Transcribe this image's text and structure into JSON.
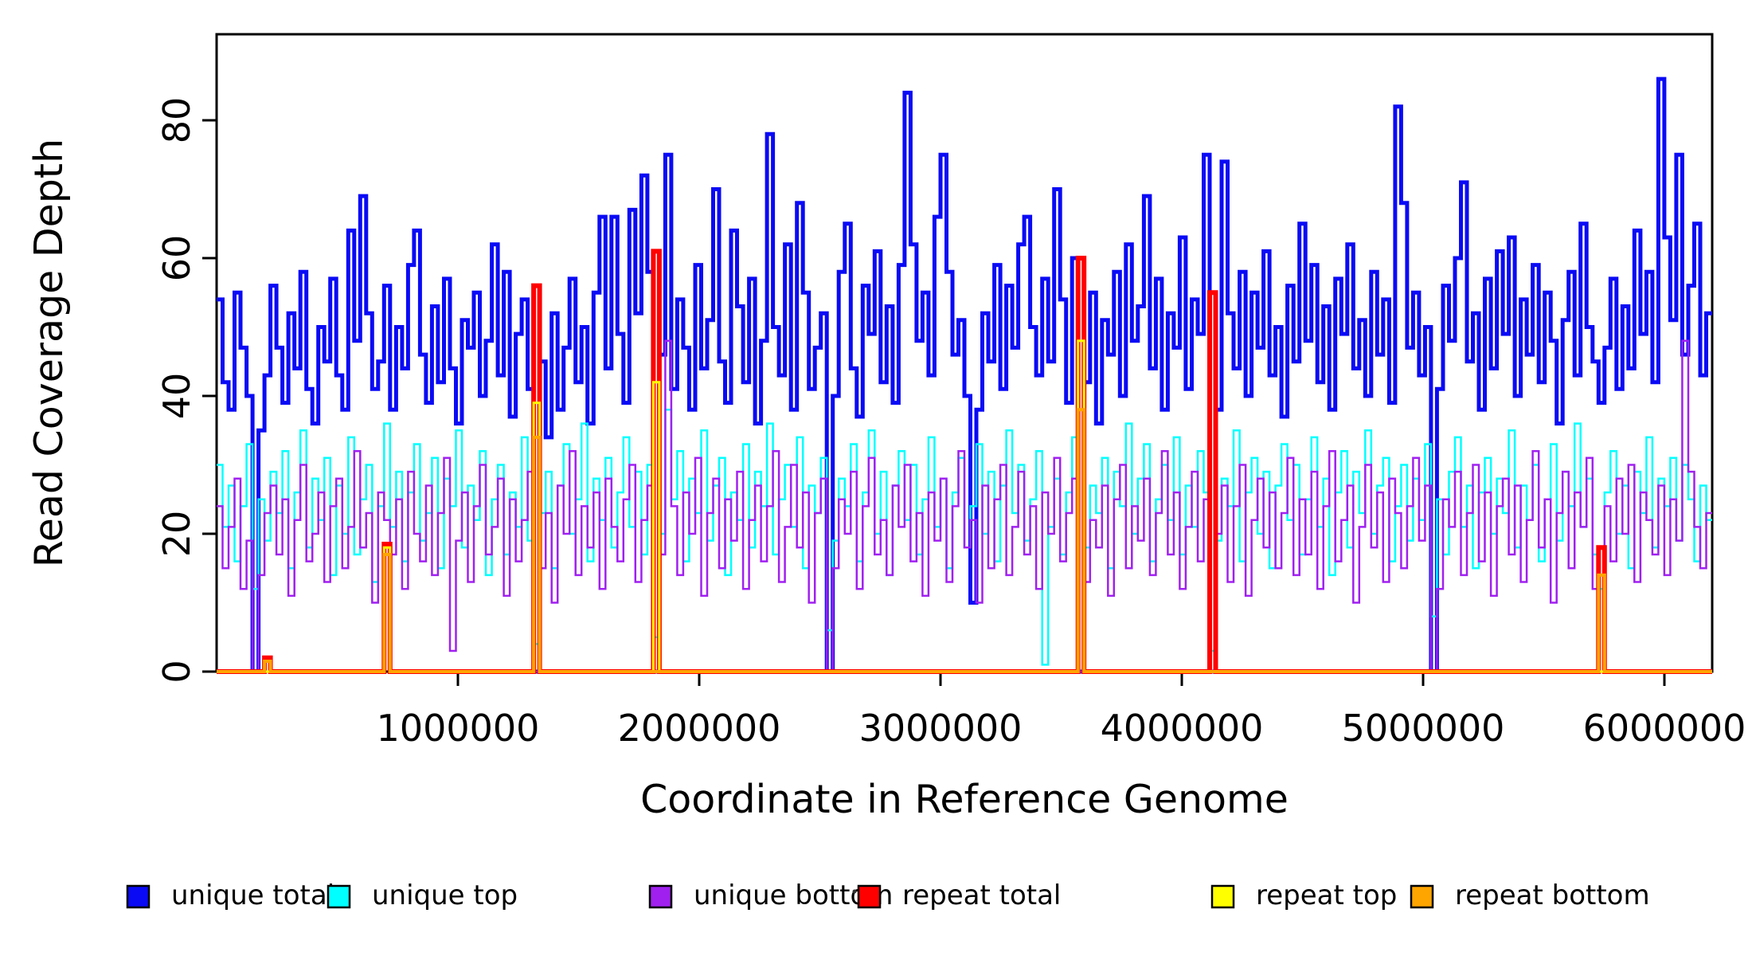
{
  "page": {
    "background": "#ffffff"
  },
  "chart_data": {
    "type": "line",
    "subtype": "step",
    "title": "",
    "xlabel": "Coordinate in Reference Genome",
    "ylabel": "Read Coverage Depth",
    "x_range": [
      0,
      6200000
    ],
    "y_range": [
      0,
      92
    ],
    "x_ticks": [
      1000000,
      2000000,
      3000000,
      4000000,
      5000000,
      6000000
    ],
    "x_tick_labels": [
      "1000000",
      "2000000",
      "3000000",
      "4000000",
      "5000000",
      "6000000"
    ],
    "y_ticks": [
      0,
      20,
      40,
      60,
      80
    ],
    "y_tick_labels": [
      "0",
      "20",
      "40",
      "60",
      "80"
    ],
    "grid": false,
    "legend_position": "bottom",
    "bin_size": 24800,
    "n_bins": 250,
    "series": [
      {
        "name": "unique total",
        "color": "#0A0AF5",
        "width": 5,
        "values": [
          54,
          42,
          38,
          55,
          47,
          40,
          0,
          35,
          43,
          56,
          47,
          39,
          52,
          44,
          58,
          41,
          36,
          50,
          45,
          57,
          43,
          38,
          64,
          48,
          69,
          52,
          41,
          45,
          56,
          38,
          50,
          44,
          59,
          64,
          46,
          39,
          53,
          42,
          57,
          44,
          36,
          51,
          47,
          55,
          40,
          48,
          62,
          43,
          58,
          37,
          49,
          54,
          41,
          0,
          45,
          34,
          52,
          38,
          47,
          57,
          42,
          50,
          36,
          55,
          66,
          44,
          66,
          49,
          39,
          67,
          52,
          72,
          58,
          0,
          46,
          75,
          41,
          54,
          47,
          38,
          59,
          44,
          51,
          70,
          45,
          39,
          64,
          53,
          42,
          57,
          36,
          48,
          78,
          50,
          43,
          62,
          38,
          68,
          55,
          41,
          47,
          52,
          0,
          40,
          58,
          65,
          44,
          37,
          56,
          49,
          61,
          42,
          53,
          39,
          59,
          84,
          62,
          48,
          55,
          43,
          66,
          75,
          58,
          46,
          51,
          40,
          10,
          38,
          52,
          45,
          59,
          41,
          56,
          47,
          62,
          66,
          50,
          43,
          57,
          45,
          70,
          54,
          39,
          60,
          0,
          42,
          55,
          36,
          51,
          46,
          58,
          40,
          62,
          48,
          53,
          69,
          44,
          57,
          38,
          52,
          47,
          63,
          41,
          54,
          49,
          75,
          0,
          38,
          74,
          52,
          44,
          58,
          40,
          55,
          47,
          61,
          43,
          50,
          37,
          56,
          45,
          65,
          48,
          59,
          42,
          53,
          38,
          57,
          49,
          62,
          44,
          51,
          40,
          58,
          46,
          54,
          39,
          82,
          68,
          47,
          55,
          43,
          50,
          0,
          41,
          56,
          48,
          60,
          71,
          45,
          52,
          38,
          57,
          44,
          61,
          49,
          63,
          40,
          54,
          46,
          59,
          42,
          55,
          48,
          36,
          51,
          58,
          43,
          65,
          50,
          45,
          39,
          47,
          57,
          41,
          53,
          44,
          64,
          49,
          58,
          42,
          86,
          63,
          51,
          75,
          46,
          56,
          65,
          43,
          52
        ]
      },
      {
        "name": "unique top",
        "color": "#00FFFF",
        "width": 2.5,
        "values": [
          30,
          21,
          27,
          16,
          24,
          33,
          12,
          25,
          19,
          29,
          23,
          32,
          15,
          26,
          35,
          18,
          28,
          22,
          31,
          14,
          27,
          20,
          34,
          17,
          25,
          30,
          13,
          24,
          36,
          21,
          29,
          16,
          26,
          33,
          19,
          23,
          31,
          15,
          28,
          24,
          35,
          18,
          27,
          22,
          32,
          14,
          25,
          30,
          17,
          26,
          21,
          34,
          19,
          4,
          23,
          29,
          15,
          27,
          33,
          20,
          25,
          36,
          16,
          28,
          22,
          31,
          18,
          26,
          34,
          21,
          29,
          17,
          30,
          5,
          20,
          38,
          25,
          32,
          16,
          28,
          23,
          35,
          19,
          27,
          31,
          14,
          26,
          22,
          33,
          18,
          29,
          24,
          36,
          17,
          25,
          30,
          21,
          34,
          15,
          27,
          23,
          31,
          6,
          19,
          28,
          24,
          33,
          16,
          26,
          35,
          20,
          29,
          14,
          27,
          32,
          22,
          30,
          17,
          25,
          34,
          21,
          28,
          15,
          26,
          31,
          18,
          24,
          33,
          20,
          29,
          16,
          27,
          35,
          23,
          30,
          19,
          25,
          32,
          1,
          21,
          28,
          17,
          26,
          34,
          0,
          18,
          27,
          23,
          31,
          15,
          29,
          24,
          36,
          20,
          28,
          33,
          16,
          25,
          30,
          22,
          34,
          17,
          27,
          21,
          32,
          26,
          3,
          19,
          28,
          24,
          35,
          16,
          26,
          31,
          20,
          29,
          15,
          27,
          33,
          22,
          30,
          17,
          25,
          34,
          21,
          28,
          14,
          26,
          32,
          18,
          29,
          23,
          35,
          20,
          27,
          31,
          16,
          24,
          30,
          19,
          28,
          22,
          33,
          8,
          25,
          17,
          29,
          34,
          21,
          27,
          15,
          26,
          31,
          20,
          28,
          23,
          35,
          18,
          27,
          22,
          30,
          16,
          25,
          33,
          19,
          29,
          24,
          36,
          21,
          28,
          17,
          12,
          26,
          32,
          20,
          27,
          15,
          29,
          23,
          34,
          18,
          28,
          24,
          31,
          19,
          30,
          25,
          16,
          27,
          22
        ]
      },
      {
        "name": "unique bottom",
        "color": "#A020F0",
        "width": 2.5,
        "values": [
          24,
          15,
          21,
          28,
          12,
          19,
          0,
          14,
          23,
          27,
          17,
          25,
          11,
          22,
          30,
          16,
          20,
          26,
          13,
          24,
          28,
          15,
          21,
          32,
          18,
          23,
          10,
          26,
          22,
          17,
          25,
          12,
          29,
          20,
          16,
          27,
          14,
          23,
          31,
          3,
          19,
          26,
          13,
          24,
          30,
          17,
          21,
          28,
          11,
          25,
          16,
          22,
          29,
          0,
          15,
          23,
          10,
          27,
          20,
          32,
          14,
          24,
          18,
          26,
          12,
          28,
          21,
          16,
          25,
          30,
          13,
          22,
          27,
          0,
          17,
          48,
          24,
          14,
          26,
          20,
          31,
          11,
          23,
          28,
          15,
          25,
          19,
          29,
          12,
          22,
          27,
          16,
          24,
          32,
          13,
          21,
          30,
          18,
          26,
          10,
          23,
          28,
          0,
          15,
          25,
          20,
          29,
          12,
          24,
          31,
          17,
          22,
          14,
          27,
          21,
          30,
          16,
          23,
          11,
          26,
          19,
          28,
          13,
          24,
          32,
          18,
          22,
          10,
          27,
          15,
          25,
          30,
          14,
          21,
          29,
          17,
          24,
          12,
          26,
          20,
          31,
          16,
          23,
          28,
          0,
          13,
          22,
          18,
          27,
          11,
          25,
          30,
          15,
          24,
          19,
          28,
          14,
          23,
          32,
          17,
          26,
          12,
          21,
          29,
          16,
          25,
          0,
          20,
          27,
          13,
          24,
          30,
          11,
          22,
          28,
          18,
          26,
          15,
          23,
          31,
          14,
          25,
          17,
          29,
          12,
          24,
          32,
          16,
          22,
          27,
          10,
          21,
          30,
          18,
          26,
          13,
          28,
          23,
          15,
          24,
          31,
          19,
          27,
          0,
          12,
          25,
          21,
          29,
          14,
          23,
          30,
          16,
          26,
          11,
          24,
          28,
          17,
          27,
          13,
          22,
          32,
          18,
          25,
          10,
          23,
          29,
          15,
          26,
          21,
          31,
          12,
          0,
          24,
          16,
          28,
          20,
          30,
          13,
          26,
          22,
          17,
          27,
          14,
          25,
          19,
          48,
          29,
          21,
          15,
          23
        ]
      },
      {
        "name": "repeat total",
        "color": "#FF0000",
        "width": 6,
        "baseline": 0,
        "spikes": [
          [
            8,
            2
          ],
          [
            28,
            18.5
          ],
          [
            53,
            56
          ],
          [
            73,
            61
          ],
          [
            144,
            60
          ],
          [
            166,
            55
          ],
          [
            231,
            18
          ]
        ]
      },
      {
        "name": "repeat top",
        "color": "#FFFF00",
        "width": 3,
        "baseline": 0,
        "spikes": [
          [
            28,
            18
          ],
          [
            53,
            39
          ],
          [
            73,
            42
          ],
          [
            144,
            48
          ]
        ]
      },
      {
        "name": "repeat bottom",
        "color": "#FFA500",
        "width": 4,
        "baseline": 0,
        "spikes": [
          [
            8,
            1.5
          ],
          [
            28,
            17
          ],
          [
            53,
            34
          ],
          [
            144,
            38
          ],
          [
            231,
            14
          ]
        ]
      }
    ]
  }
}
